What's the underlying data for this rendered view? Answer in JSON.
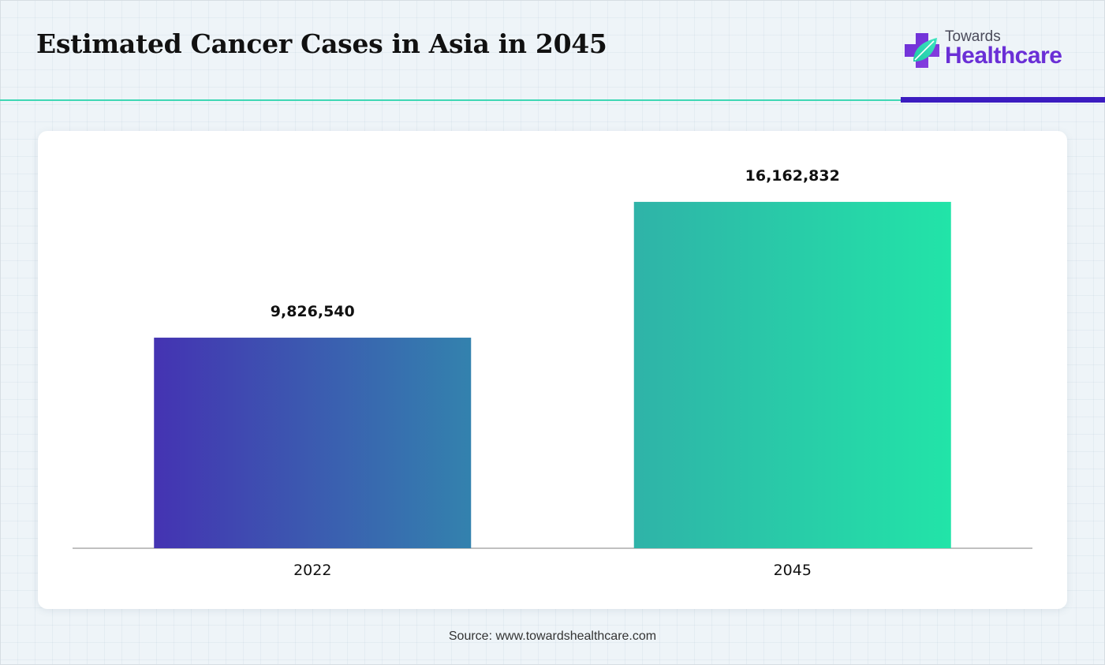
{
  "header": {
    "title": "Estimated Cancer Cases in Asia in 2045",
    "logo": {
      "top_text": "Towards",
      "main_text": "Healthcare",
      "icon": "medical-cross-leaf-icon"
    }
  },
  "colors": {
    "accent_teal": "#3ed7b4",
    "accent_purple": "#3b1cc0",
    "bar_2022_start": "#4433b2",
    "bar_2022_end": "#3382ae",
    "bar_2045_start": "#2fb3a8",
    "bar_2045_end": "#22e4a8"
  },
  "chart_data": {
    "type": "bar",
    "categories": [
      "2022",
      "2045"
    ],
    "values": [
      9826540,
      16162832
    ],
    "value_labels": [
      "9,826,540",
      "16,162,832"
    ],
    "title": "Estimated Cancer Cases in Asia in 2045",
    "xlabel": "",
    "ylabel": "",
    "ylim": [
      0,
      18000000
    ],
    "grid": false,
    "legend": "none"
  },
  "footer": {
    "source": "Source: www.towardshealthcare.com"
  }
}
